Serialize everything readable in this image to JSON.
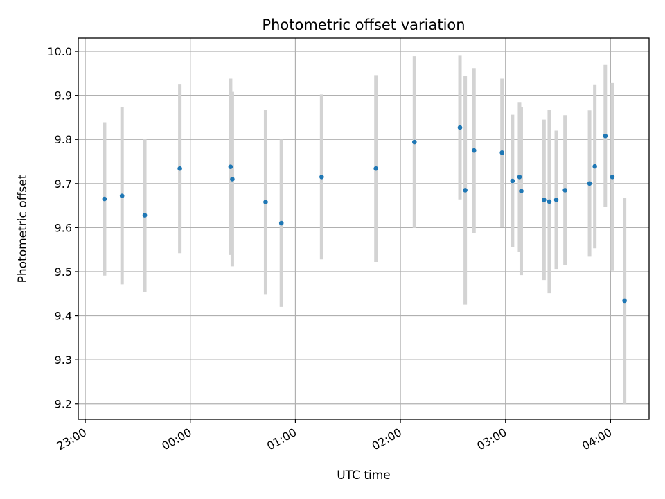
{
  "chart_data": {
    "type": "scatter",
    "title": "Photometric offset variation",
    "xlabel": "UTC time",
    "ylabel": "Photometric offset",
    "xlim": [
      "22:56",
      "04:22"
    ],
    "ylim": [
      9.165,
      10.03
    ],
    "grid": true,
    "x_ticks": [
      "23:00",
      "00:00",
      "01:00",
      "02:00",
      "03:00",
      "04:00"
    ],
    "y_ticks": [
      9.2,
      9.3,
      9.4,
      9.5,
      9.6,
      9.7,
      9.8,
      9.9,
      10.0
    ],
    "error_bar_color": "#d3d3d3",
    "marker_color": "#1f77b4",
    "points": [
      {
        "t": "23:11",
        "y": 9.665,
        "yerr": 0.174
      },
      {
        "t": "23:21",
        "y": 9.672,
        "yerr": 0.201
      },
      {
        "t": "23:34",
        "y": 9.628,
        "yerr": 0.174
      },
      {
        "t": "23:54",
        "y": 9.734,
        "yerr": 0.192
      },
      {
        "t": "00:23",
        "y": 9.738,
        "yerr": 0.2
      },
      {
        "t": "00:24",
        "y": 9.71,
        "yerr": 0.198
      },
      {
        "t": "00:43",
        "y": 9.658,
        "yerr": 0.209
      },
      {
        "t": "00:52",
        "y": 9.61,
        "yerr": 0.19
      },
      {
        "t": "01:15",
        "y": 9.715,
        "yerr": 0.187
      },
      {
        "t": "01:46",
        "y": 9.734,
        "yerr": 0.212
      },
      {
        "t": "02:08",
        "y": 9.794,
        "yerr": 0.195
      },
      {
        "t": "02:34",
        "y": 9.827,
        "yerr": 0.163
      },
      {
        "t": "02:37",
        "y": 9.685,
        "yerr": 0.26
      },
      {
        "t": "02:42",
        "y": 9.775,
        "yerr": 0.187
      },
      {
        "t": "02:58",
        "y": 9.77,
        "yerr": 0.168
      },
      {
        "t": "03:04",
        "y": 9.706,
        "yerr": 0.15
      },
      {
        "t": "03:08",
        "y": 9.715,
        "yerr": 0.17
      },
      {
        "t": "03:09",
        "y": 9.683,
        "yerr": 0.191
      },
      {
        "t": "03:22",
        "y": 9.663,
        "yerr": 0.182
      },
      {
        "t": "03:25",
        "y": 9.659,
        "yerr": 0.208
      },
      {
        "t": "03:29",
        "y": 9.663,
        "yerr": 0.157
      },
      {
        "t": "03:34",
        "y": 9.685,
        "yerr": 0.17
      },
      {
        "t": "03:48",
        "y": 9.7,
        "yerr": 0.166
      },
      {
        "t": "03:51",
        "y": 9.739,
        "yerr": 0.186
      },
      {
        "t": "03:57",
        "y": 9.808,
        "yerr": 0.161
      },
      {
        "t": "04:01",
        "y": 9.715,
        "yerr": 0.213
      },
      {
        "t": "04:08",
        "y": 9.434,
        "yerr": 0.234
      }
    ]
  }
}
